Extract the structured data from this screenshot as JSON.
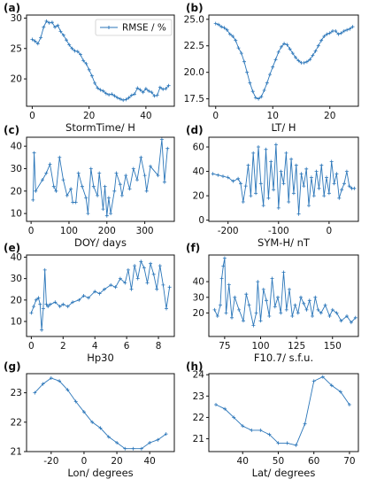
{
  "figure": {
    "legend_label": "RMSE / %"
  },
  "style": {
    "line_color": "#2b76b9",
    "axis_color": "#111111"
  },
  "chart_data": [
    {
      "panel_label": "(a)",
      "type": "line",
      "xlabel": "StormTime/ H",
      "ylabel": "",
      "xlim": [
        -2,
        50
      ],
      "ylim": [
        15.5,
        30.5
      ],
      "xticks": [
        0,
        20,
        40
      ],
      "yticks": [
        20,
        25,
        30
      ],
      "legend": "top-right",
      "series_name": "RMSE / %",
      "x": [
        0,
        1,
        2,
        3,
        4,
        5,
        6,
        7,
        8,
        9,
        10,
        11,
        12,
        13,
        14,
        15,
        16,
        17,
        18,
        19,
        20,
        21,
        22,
        23,
        24,
        25,
        26,
        27,
        28,
        29,
        30,
        31,
        32,
        33,
        34,
        35,
        36,
        37,
        38,
        39,
        40,
        41,
        42,
        43,
        44,
        45,
        46,
        47,
        48
      ],
      "y": [
        26.5,
        26.2,
        25.8,
        26.8,
        28.5,
        29.5,
        29.2,
        29.3,
        28.5,
        28.8,
        27.8,
        27.2,
        26.4,
        25.6,
        25.0,
        24.6,
        24.5,
        24.0,
        23.0,
        22.5,
        21.5,
        20.5,
        19.3,
        18.5,
        18.2,
        18.0,
        17.6,
        17.4,
        17.5,
        17.2,
        16.9,
        16.7,
        16.5,
        16.6,
        16.9,
        17.3,
        17.5,
        18.5,
        18.2,
        17.8,
        18.4,
        18.0,
        17.8,
        17.2,
        17.3,
        18.6,
        18.3,
        18.4,
        18.9
      ]
    },
    {
      "panel_label": "(b)",
      "type": "line",
      "xlabel": "LT/ H",
      "ylabel": "",
      "xlim": [
        -1.2,
        25
      ],
      "ylim": [
        16.8,
        25.4
      ],
      "xticks": [
        0,
        10,
        20
      ],
      "yticks": [
        17.5,
        20.0,
        22.5,
        25.0
      ],
      "x": [
        0,
        0.5,
        1,
        1.5,
        2,
        2.5,
        3,
        3.5,
        4,
        4.5,
        5,
        5.5,
        6,
        6.5,
        7,
        7.5,
        8,
        8.5,
        9,
        9.5,
        10,
        10.5,
        11,
        11.5,
        12,
        12.5,
        13,
        13.5,
        14,
        14.5,
        15,
        15.5,
        16,
        16.5,
        17,
        17.5,
        18,
        18.5,
        19,
        19.5,
        20,
        20.5,
        21,
        21.5,
        22,
        22.5,
        23,
        23.5,
        24
      ],
      "y": [
        24.6,
        24.5,
        24.3,
        24.2,
        24.0,
        23.6,
        23.4,
        23.0,
        22.3,
        21.8,
        21.0,
        20.0,
        19.0,
        18.2,
        17.6,
        17.5,
        17.7,
        18.3,
        19.0,
        19.8,
        20.5,
        21.2,
        21.9,
        22.4,
        22.7,
        22.6,
        22.2,
        21.8,
        21.4,
        21.1,
        20.9,
        20.9,
        21.0,
        21.2,
        21.6,
        22.0,
        22.5,
        23.0,
        23.4,
        23.6,
        23.7,
        23.9,
        23.9,
        23.6,
        23.7,
        23.9,
        24.0,
        24.1,
        24.3
      ]
    },
    {
      "panel_label": "(c)",
      "type": "line",
      "xlabel": "DOY/ days",
      "ylabel": "",
      "xlim": [
        -12,
        378
      ],
      "ylim": [
        6.5,
        44
      ],
      "xticks": [
        0,
        100,
        200,
        300
      ],
      "yticks": [
        10,
        20,
        30,
        40
      ],
      "x": [
        5,
        8,
        12,
        30,
        40,
        50,
        60,
        66,
        75,
        85,
        95,
        105,
        110,
        118,
        125,
        135,
        145,
        150,
        158,
        165,
        175,
        180,
        190,
        195,
        200,
        205,
        210,
        220,
        225,
        235,
        240,
        250,
        260,
        270,
        280,
        290,
        300,
        305,
        315,
        335,
        345,
        352,
        360
      ],
      "y": [
        16,
        37,
        20,
        25,
        28,
        32,
        22,
        20,
        35,
        25,
        18,
        21,
        15,
        15,
        28,
        22,
        17,
        10,
        30,
        22,
        18,
        28,
        12,
        22,
        9,
        17,
        10,
        20,
        28,
        23,
        18,
        27,
        21,
        30,
        25,
        35,
        27,
        20,
        31,
        27,
        43,
        24,
        39
      ]
    },
    {
      "panel_label": "(d)",
      "type": "line",
      "xlabel": "SYM-H/ nT",
      "ylabel": "",
      "xlim": [
        -238,
        58
      ],
      "ylim": [
        -1,
        68
      ],
      "xticks": [
        -200,
        -100,
        0
      ],
      "yticks": [
        0,
        20,
        40,
        60
      ],
      "x": [
        -230,
        -220,
        -210,
        -200,
        -190,
        -180,
        -175,
        -170,
        -165,
        -160,
        -155,
        -150,
        -145,
        -140,
        -135,
        -130,
        -125,
        -120,
        -115,
        -110,
        -105,
        -100,
        -95,
        -90,
        -85,
        -80,
        -75,
        -70,
        -65,
        -60,
        -55,
        -50,
        -45,
        -40,
        -35,
        -30,
        -25,
        -20,
        -15,
        -10,
        -5,
        0,
        5,
        10,
        15,
        20,
        25,
        30,
        35,
        40,
        45,
        50
      ],
      "y": [
        38,
        37,
        36,
        35,
        32,
        34,
        30,
        15,
        28,
        45,
        20,
        55,
        22,
        60,
        30,
        12,
        58,
        18,
        48,
        25,
        62,
        10,
        40,
        30,
        55,
        15,
        50,
        22,
        45,
        5,
        38,
        28,
        42,
        12,
        35,
        20,
        40,
        26,
        45,
        20,
        35,
        22,
        48,
        30,
        38,
        18,
        25,
        30,
        40,
        28,
        26,
        26
      ]
    },
    {
      "panel_label": "(e)",
      "type": "line",
      "xlabel": "Hp30",
      "ylabel": "",
      "xlim": [
        -0.3,
        9.0
      ],
      "ylim": [
        3,
        41
      ],
      "xticks": [
        0,
        2,
        4,
        6,
        8
      ],
      "yticks": [
        10,
        20,
        30,
        40
      ],
      "x": [
        0,
        0.15,
        0.3,
        0.45,
        0.55,
        0.65,
        0.75,
        0.85,
        0.95,
        1.05,
        1.2,
        1.5,
        1.8,
        2.0,
        2.3,
        2.6,
        3.0,
        3.3,
        3.6,
        4.0,
        4.3,
        4.6,
        5.0,
        5.3,
        5.6,
        5.9,
        6.1,
        6.3,
        6.5,
        6.7,
        6.9,
        7.1,
        7.3,
        7.5,
        7.7,
        7.9,
        8.1,
        8.3,
        8.5,
        8.7
      ],
      "y": [
        14,
        17,
        20,
        21,
        18,
        6,
        16,
        34,
        18,
        17,
        18,
        19,
        17,
        18,
        17,
        19,
        20,
        22,
        21,
        24,
        23,
        25,
        27,
        26,
        30,
        28,
        34,
        25,
        36,
        30,
        38,
        35,
        28,
        37,
        32,
        25,
        36,
        27,
        16,
        26
      ]
    },
    {
      "panel_label": "(f)",
      "type": "line",
      "xlabel": "F10.7/ s.f.u.",
      "ylabel": "",
      "xlim": [
        64,
        168
      ],
      "ylim": [
        5,
        57
      ],
      "xticks": [
        75,
        100,
        125,
        150
      ],
      "yticks": [
        20,
        30,
        40
      ],
      "x": [
        68,
        70,
        72,
        73,
        74,
        75,
        76,
        78,
        80,
        82,
        85,
        88,
        90,
        92,
        95,
        97,
        98,
        100,
        102,
        104,
        106,
        108,
        110,
        112,
        114,
        116,
        118,
        120,
        122,
        124,
        126,
        128,
        130,
        132,
        134,
        136,
        138,
        140,
        142,
        145,
        148,
        150,
        153,
        156,
        160,
        163,
        166
      ],
      "y": [
        22,
        18,
        25,
        42,
        50,
        55,
        20,
        38,
        17,
        30,
        22,
        15,
        32,
        25,
        12,
        20,
        40,
        15,
        35,
        28,
        18,
        42,
        24,
        30,
        20,
        46,
        22,
        35,
        18,
        25,
        20,
        30,
        26,
        22,
        28,
        18,
        30,
        22,
        20,
        25,
        18,
        22,
        20,
        15,
        18,
        14,
        17
      ]
    },
    {
      "panel_label": "(g)",
      "type": "line",
      "xlabel": "Lon/ degrees",
      "ylabel": "",
      "xlim": [
        -35,
        55
      ],
      "ylim": [
        21.0,
        23.65
      ],
      "xticks": [
        -20,
        0,
        20,
        40
      ],
      "yticks": [
        21,
        22,
        23
      ],
      "x": [
        -30,
        -25,
        -20,
        -15,
        -10,
        -5,
        0,
        5,
        10,
        15,
        20,
        25,
        30,
        35,
        40,
        45,
        50
      ],
      "y": [
        23.0,
        23.3,
        23.5,
        23.4,
        23.1,
        22.7,
        22.35,
        22.0,
        21.8,
        21.5,
        21.3,
        21.1,
        21.1,
        21.1,
        21.3,
        21.4,
        21.6
      ]
    },
    {
      "panel_label": "(h)",
      "type": "line",
      "xlabel": "Lat/ degrees",
      "ylabel": "",
      "xlim": [
        30.5,
        72.5
      ],
      "ylim": [
        20.4,
        24.05
      ],
      "xticks": [
        40,
        50,
        60,
        70
      ],
      "yticks": [
        21,
        22,
        23,
        24
      ],
      "x": [
        32.5,
        35,
        37.5,
        40,
        42.5,
        45,
        47.5,
        50,
        52.5,
        55,
        57.5,
        60,
        62.5,
        65,
        67.5,
        70
      ],
      "y": [
        22.6,
        22.4,
        22.0,
        21.6,
        21.4,
        21.4,
        21.2,
        20.8,
        20.8,
        20.7,
        21.7,
        23.7,
        23.9,
        23.5,
        23.2,
        22.6
      ]
    }
  ]
}
